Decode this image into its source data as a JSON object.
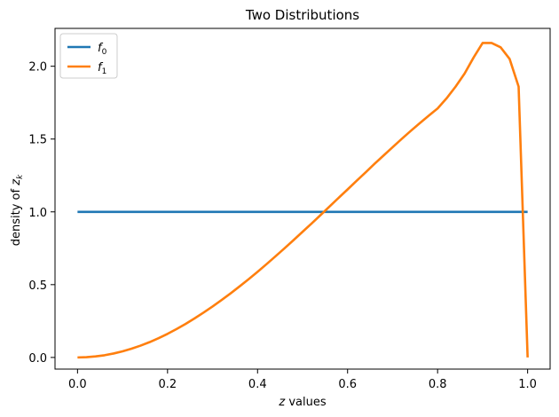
{
  "chart_data": {
    "type": "line",
    "title": "Two Distributions",
    "xlabel": "z values",
    "ylabel": "density of z_k",
    "xlim": [
      -0.05,
      1.05
    ],
    "ylim": [
      -0.08,
      2.26
    ],
    "xticks": [
      0.0,
      0.2,
      0.4,
      0.6,
      0.8,
      1.0
    ],
    "xtick_labels": [
      "0.0",
      "0.2",
      "0.4",
      "0.6",
      "0.8",
      "1.0"
    ],
    "yticks": [
      0.0,
      0.5,
      1.0,
      1.5,
      2.0
    ],
    "ytick_labels": [
      "0.0",
      "0.5",
      "1.0",
      "1.5",
      "2.0"
    ],
    "grid": false,
    "legend_position": "top-left",
    "series": [
      {
        "name": "f_0",
        "color": "#1f77b4",
        "x": [
          0.0,
          1.0
        ],
        "y": [
          1.0,
          1.0
        ]
      },
      {
        "name": "f_1",
        "color": "#ff7f0e",
        "x": [
          0.0,
          0.02,
          0.04,
          0.06,
          0.08,
          0.1,
          0.12,
          0.14,
          0.16,
          0.18,
          0.2,
          0.22,
          0.24,
          0.26,
          0.28,
          0.3,
          0.32,
          0.34,
          0.36,
          0.38,
          0.4,
          0.42,
          0.44,
          0.46,
          0.48,
          0.5,
          0.52,
          0.54,
          0.56,
          0.58,
          0.6,
          0.62,
          0.64,
          0.66,
          0.68,
          0.7,
          0.72,
          0.74,
          0.76,
          0.78,
          0.8,
          0.82,
          0.84,
          0.86,
          0.88,
          0.9,
          0.92,
          0.94,
          0.96,
          0.98,
          1.0
        ],
        "y": [
          0.0,
          0.002,
          0.007,
          0.015,
          0.027,
          0.042,
          0.06,
          0.081,
          0.105,
          0.132,
          0.162,
          0.195,
          0.23,
          0.268,
          0.308,
          0.35,
          0.394,
          0.44,
          0.488,
          0.537,
          0.588,
          0.641,
          0.695,
          0.75,
          0.806,
          0.863,
          0.92,
          0.978,
          1.037,
          1.096,
          1.154,
          1.213,
          1.271,
          1.33,
          1.387,
          1.444,
          1.5,
          1.555,
          1.608,
          1.66,
          1.71,
          1.78,
          1.86,
          1.95,
          2.06,
          2.16,
          2.16,
          2.13,
          2.05,
          1.86,
          0.0
        ]
      }
    ]
  }
}
